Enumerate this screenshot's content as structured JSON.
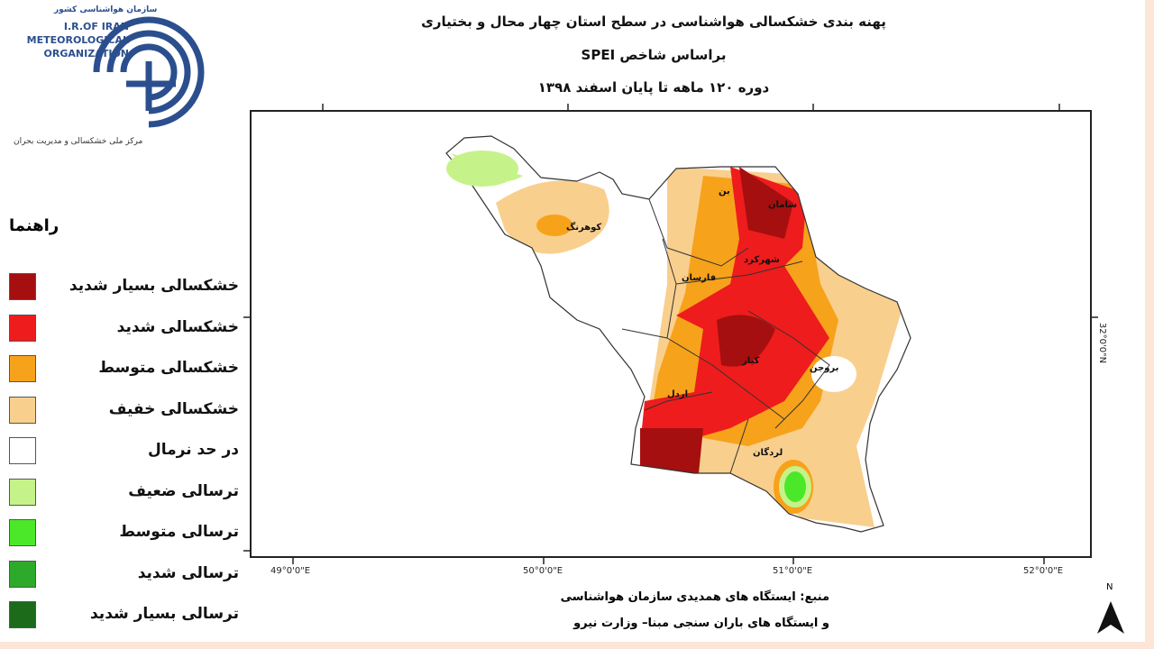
{
  "header": {
    "title": "پهنه بندی خشکسالی هواشناسی در سطح استان چهار محال و بختیاری",
    "subtitle": "براساس شاخص SPEI",
    "period": "دوره ۱۲۰ ماهه تا پایان اسفند ۱۳۹۸"
  },
  "logo": {
    "org_fa": "سازمان هواشناسی کشور",
    "org_en": [
      "I.R.OF IRAN",
      "METEOROLOGICAL",
      "ORGANIZATION"
    ],
    "center": "مرکز ملی خشکسالی و مدیریت بحران"
  },
  "legend": {
    "title": "راهنما",
    "items": [
      {
        "label": "خشکسالی بسیار شدید",
        "color": "#a50f0f"
      },
      {
        "label": "خشکسالی شدید",
        "color": "#ee1c1c"
      },
      {
        "label": "خشکسالی متوسط",
        "color": "#f7a21b"
      },
      {
        "label": "خشکسالی خفیف",
        "color": "#f9cf8e"
      },
      {
        "label": "در حد نرمال",
        "color": "#ffffff"
      },
      {
        "label": "ترسالی ضعیف",
        "color": "#c6f28a"
      },
      {
        "label": "ترسالی متوسط",
        "color": "#4be82a"
      },
      {
        "label": "ترسالی شدید",
        "color": "#2eaa2a"
      },
      {
        "label": "ترسالی بسیار شدید",
        "color": "#1b6b1b"
      }
    ]
  },
  "map": {
    "x_labels": [
      "49°0'0\"E",
      "50°0'0\"E",
      "51°0'0\"E",
      "52°0'0\"E"
    ],
    "y_label": "32°0'0\"N",
    "places": [
      "کوهرنگ",
      "بن",
      "سامان",
      "شهرکرد",
      "فارسان",
      "کیار",
      "بروجن",
      "اردل",
      "لردگان"
    ]
  },
  "source": [
    "منبع: ایستگاه های همدیدی سازمان هواشناسی",
    "و ایستگاه های باران سنجی مبنا– وزارت نیرو"
  ],
  "north": "N"
}
